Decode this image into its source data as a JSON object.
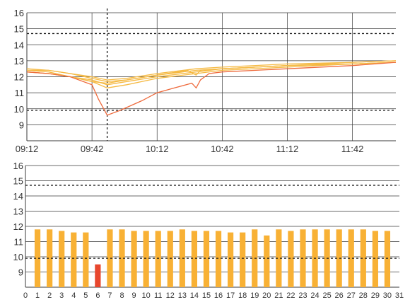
{
  "colors": {
    "grid": "#3a3a3a",
    "threshold": "#1a1a1a",
    "line_orange": "#f5b942",
    "line_red": "#ee6a3c",
    "bar_normal": "#f8b135",
    "bar_alert": "#e8472e"
  },
  "chart_data": [
    {
      "type": "line",
      "xlabel": "",
      "ylabel": "",
      "x_ticks": [
        "09:12",
        "09:42",
        "10:12",
        "10:42",
        "11:12",
        "11:42"
      ],
      "xlim": [
        "09:12",
        "12:02"
      ],
      "ylim": [
        8,
        16
      ],
      "y_ticks": [
        9,
        10,
        11,
        12,
        13,
        14,
        15,
        16
      ],
      "thresholds": [
        14.7,
        9.9
      ],
      "marker_time": "09:49",
      "grid": true,
      "series": [
        {
          "kind": "orange",
          "points": [
            [
              "09:12",
              12.4
            ],
            [
              "09:22",
              12.3
            ],
            [
              "09:32",
              12.0
            ],
            [
              "09:42",
              11.7
            ],
            [
              "09:49",
              11.3
            ],
            [
              "09:58",
              11.5
            ],
            [
              "10:12",
              11.9
            ],
            [
              "10:30",
              12.2
            ],
            [
              "10:42",
              12.4
            ],
            [
              "11:12",
              12.6
            ],
            [
              "11:42",
              12.8
            ],
            [
              "12:02",
              12.9
            ]
          ]
        },
        {
          "kind": "orange",
          "points": [
            [
              "09:12",
              12.3
            ],
            [
              "09:22",
              12.2
            ],
            [
              "09:32",
              12.0
            ],
            [
              "09:42",
              11.8
            ],
            [
              "09:49",
              11.5
            ],
            [
              "09:58",
              11.7
            ],
            [
              "10:12",
              12.0
            ],
            [
              "10:30",
              12.3
            ],
            [
              "10:42",
              12.5
            ],
            [
              "11:12",
              12.7
            ],
            [
              "11:42",
              12.8
            ],
            [
              "12:02",
              12.9
            ]
          ]
        },
        {
          "kind": "orange",
          "points": [
            [
              "09:12",
              12.5
            ],
            [
              "09:22",
              12.4
            ],
            [
              "09:32",
              12.2
            ],
            [
              "09:42",
              11.9
            ],
            [
              "09:49",
              11.7
            ],
            [
              "09:58",
              11.8
            ],
            [
              "10:12",
              12.1
            ],
            [
              "10:30",
              12.4
            ],
            [
              "10:42",
              12.5
            ],
            [
              "11:12",
              12.7
            ],
            [
              "11:42",
              12.9
            ],
            [
              "12:02",
              13.0
            ]
          ]
        },
        {
          "kind": "orange",
          "points": [
            [
              "09:12",
              12.4
            ],
            [
              "09:22",
              12.4
            ],
            [
              "09:32",
              12.2
            ],
            [
              "09:42",
              12.0
            ],
            [
              "09:49",
              11.8
            ],
            [
              "09:58",
              11.9
            ],
            [
              "10:12",
              12.2
            ],
            [
              "10:30",
              12.5
            ],
            [
              "10:42",
              12.6
            ],
            [
              "11:12",
              12.8
            ],
            [
              "11:42",
              12.9
            ],
            [
              "12:02",
              13.0
            ]
          ]
        },
        {
          "kind": "orange",
          "points": [
            [
              "09:12",
              12.3
            ],
            [
              "09:22",
              12.2
            ],
            [
              "09:32",
              12.0
            ],
            [
              "09:42",
              11.7
            ],
            [
              "09:49",
              11.6
            ],
            [
              "09:58",
              11.8
            ],
            [
              "10:12",
              12.1
            ],
            [
              "10:26",
              12.4
            ],
            [
              "10:30",
              12.1
            ],
            [
              "10:32",
              12.4
            ],
            [
              "10:42",
              12.5
            ],
            [
              "11:12",
              12.7
            ],
            [
              "11:42",
              12.8
            ],
            [
              "12:02",
              12.9
            ]
          ]
        },
        {
          "kind": "red",
          "points": [
            [
              "09:12",
              12.3
            ],
            [
              "09:22",
              12.2
            ],
            [
              "09:32",
              12.0
            ],
            [
              "09:42",
              11.5
            ],
            [
              "09:45",
              10.6
            ],
            [
              "09:49",
              9.6
            ],
            [
              "09:55",
              9.9
            ],
            [
              "10:05",
              10.5
            ],
            [
              "10:12",
              11.0
            ],
            [
              "10:20",
              11.3
            ],
            [
              "10:28",
              11.6
            ],
            [
              "10:30",
              11.3
            ],
            [
              "10:32",
              11.8
            ],
            [
              "10:36",
              12.2
            ],
            [
              "10:42",
              12.3
            ],
            [
              "11:12",
              12.5
            ],
            [
              "11:42",
              12.7
            ],
            [
              "12:02",
              12.9
            ]
          ]
        }
      ]
    },
    {
      "type": "bar",
      "xlabel": "",
      "ylabel": "",
      "x_ticks": [
        0,
        1,
        2,
        3,
        4,
        5,
        6,
        7,
        8,
        9,
        10,
        11,
        12,
        13,
        14,
        15,
        16,
        17,
        18,
        19,
        20,
        21,
        22,
        23,
        24,
        25,
        26,
        27,
        28,
        29,
        30,
        31
      ],
      "xlim": [
        0,
        31
      ],
      "ylim": [
        8,
        16
      ],
      "y_ticks": [
        9,
        10,
        11,
        12,
        13,
        14,
        15,
        16
      ],
      "thresholds": [
        14.7,
        9.9
      ],
      "grid": true,
      "categories": [
        1,
        2,
        3,
        4,
        5,
        6,
        7,
        8,
        9,
        10,
        11,
        12,
        13,
        14,
        15,
        16,
        17,
        18,
        19,
        20,
        21,
        22,
        23,
        24,
        25,
        26,
        27,
        28,
        29,
        30
      ],
      "values": [
        11.8,
        11.8,
        11.7,
        11.6,
        11.6,
        9.5,
        11.8,
        11.8,
        11.7,
        11.7,
        11.7,
        11.7,
        11.8,
        11.7,
        11.7,
        11.7,
        11.6,
        11.6,
        11.8,
        11.4,
        11.8,
        11.7,
        11.8,
        11.8,
        11.8,
        11.8,
        11.8,
        11.8,
        11.7,
        11.7
      ],
      "alert_categories": [
        6
      ]
    }
  ]
}
